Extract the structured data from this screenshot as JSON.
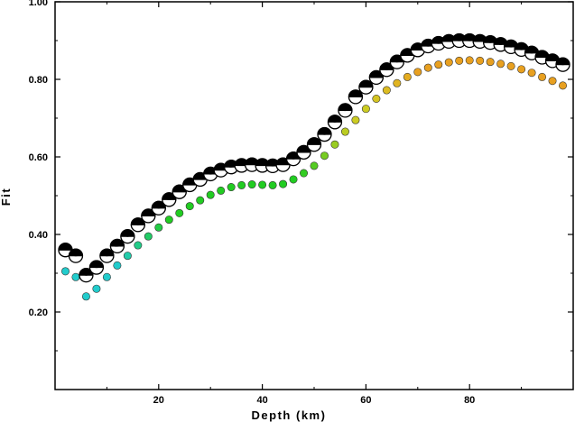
{
  "chart_data": {
    "type": "scatter",
    "title": "",
    "xlabel": "Depth (km)",
    "ylabel": "Fit",
    "xlim": [
      0,
      100
    ],
    "ylim": [
      0,
      1.0
    ],
    "x_ticks": [
      20,
      40,
      60,
      80
    ],
    "x_tick_labels": [
      "20",
      "40",
      "60",
      "80"
    ],
    "y_ticks": [
      0.2,
      0.4,
      0.6,
      0.8,
      1.0
    ],
    "y_tick_labels": [
      "0.20",
      "0.40",
      "0.60",
      "0.80",
      "1.00"
    ],
    "grid": false,
    "legend": "none",
    "colors": {
      "cyan": "#22cccc",
      "green": "#22cc22",
      "yellow": "#cccc22",
      "orange": "#e8a020",
      "beachball_dark": "#000000",
      "beachball_light": "#ffffff"
    },
    "series": [
      {
        "marker": "mechanism",
        "x": [
          2,
          4,
          6,
          8,
          10,
          12,
          14,
          16,
          18,
          20,
          22,
          24,
          26,
          28,
          30,
          32,
          34,
          36,
          38,
          40,
          42,
          44,
          46,
          48,
          50,
          52,
          54,
          56,
          58,
          60,
          62,
          64,
          66,
          68,
          70,
          72,
          74,
          76,
          78,
          80,
          82,
          84,
          86,
          88,
          90,
          92,
          94,
          96,
          98
        ],
        "y": [
          0.36,
          0.345,
          0.295,
          0.315,
          0.345,
          0.37,
          0.395,
          0.425,
          0.448,
          0.468,
          0.49,
          0.51,
          0.528,
          0.542,
          0.556,
          0.566,
          0.574,
          0.578,
          0.58,
          0.578,
          0.577,
          0.58,
          0.595,
          0.612,
          0.632,
          0.658,
          0.69,
          0.72,
          0.755,
          0.78,
          0.805,
          0.825,
          0.845,
          0.862,
          0.876,
          0.886,
          0.893,
          0.898,
          0.9,
          0.9,
          0.898,
          0.895,
          0.89,
          0.884,
          0.877,
          0.868,
          0.857,
          0.848,
          0.838
        ]
      },
      {
        "marker": "circle",
        "x": [
          2,
          4,
          6,
          8,
          10,
          12,
          14,
          16,
          18,
          20,
          22,
          24,
          26,
          28,
          30,
          32,
          34,
          36,
          38,
          40,
          42,
          44,
          46,
          48,
          50,
          52,
          54,
          56,
          58,
          60,
          62,
          64,
          66,
          68,
          70,
          72,
          74,
          76,
          78,
          80,
          82,
          84,
          86,
          88,
          90,
          92,
          94,
          96,
          98
        ],
        "y": [
          0.305,
          0.29,
          0.24,
          0.26,
          0.29,
          0.32,
          0.345,
          0.372,
          0.395,
          0.418,
          0.438,
          0.455,
          0.473,
          0.488,
          0.502,
          0.513,
          0.522,
          0.527,
          0.529,
          0.528,
          0.527,
          0.53,
          0.542,
          0.558,
          0.577,
          0.603,
          0.632,
          0.665,
          0.695,
          0.724,
          0.75,
          0.772,
          0.79,
          0.806,
          0.819,
          0.83,
          0.838,
          0.844,
          0.848,
          0.849,
          0.848,
          0.845,
          0.84,
          0.834,
          0.826,
          0.817,
          0.806,
          0.796,
          0.784
        ],
        "colors": [
          "#22cccc",
          "#22cccc",
          "#22cccc",
          "#22cccc",
          "#22cccc",
          "#22cccc",
          "#22ccaa",
          "#22cc88",
          "#22cc66",
          "#22cc44",
          "#22cc22",
          "#22cc22",
          "#22cc22",
          "#22cc22",
          "#22cc22",
          "#22cc22",
          "#22cc22",
          "#22cc22",
          "#22cc22",
          "#22cc22",
          "#22cc22",
          "#22cc22",
          "#22cc22",
          "#33cc22",
          "#55cc22",
          "#77cc22",
          "#99cc22",
          "#bbcc22",
          "#cccc22",
          "#cccc22",
          "#d4c422",
          "#dcbc22",
          "#e0b422",
          "#e4ac20",
          "#e8a020",
          "#e8a020",
          "#e8a020",
          "#e8a020",
          "#e8a020",
          "#e8a020",
          "#e8a020",
          "#e8a020",
          "#e8a020",
          "#e8a020",
          "#e8a020",
          "#e8a020",
          "#e8a020",
          "#e8a020",
          "#e8a020"
        ]
      }
    ]
  }
}
